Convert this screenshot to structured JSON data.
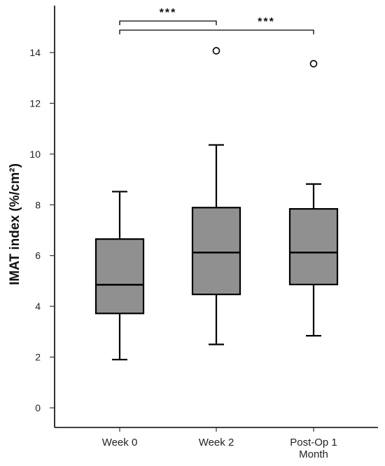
{
  "chart_data": {
    "type": "boxplot",
    "ylabel": "IMAT index (%/cm²)",
    "ylim": [
      0,
      15
    ],
    "yticks": [
      0,
      2,
      4,
      6,
      8,
      10,
      12,
      14
    ],
    "categories": [
      {
        "lines": [
          "Week 0"
        ]
      },
      {
        "lines": [
          "Week 2"
        ]
      },
      {
        "lines": [
          "Post-Op 1",
          "Month"
        ]
      }
    ],
    "boxes": [
      {
        "whisker_low": 1.9,
        "q1": 3.72,
        "median": 4.85,
        "q3": 6.65,
        "whisker_high": 8.52,
        "outliers": []
      },
      {
        "whisker_low": 2.5,
        "q1": 4.47,
        "median": 6.12,
        "q3": 7.89,
        "whisker_high": 10.36,
        "outliers": [
          14.07
        ]
      },
      {
        "whisker_low": 2.84,
        "q1": 4.86,
        "median": 6.12,
        "q3": 7.84,
        "whisker_high": 8.82,
        "outliers": [
          13.56
        ]
      }
    ],
    "significance": [
      {
        "from": 0,
        "to": 1,
        "label": "***"
      },
      {
        "from": 0,
        "to": 2,
        "label": "***"
      }
    ],
    "colors": {
      "box_fill": "#909090",
      "stroke": "#000000",
      "axis": "#000000"
    }
  }
}
